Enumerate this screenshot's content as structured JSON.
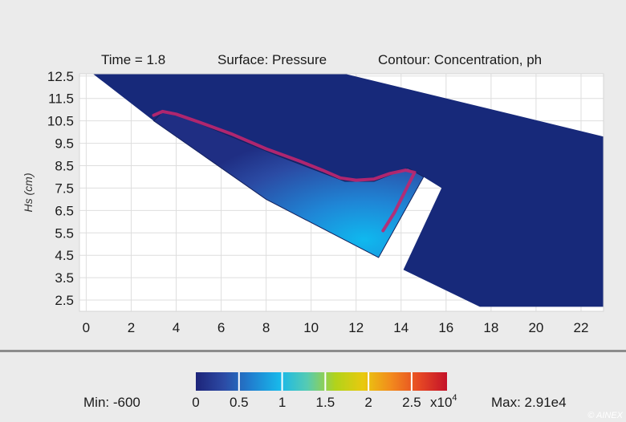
{
  "chart_data": {
    "type": "heatmap",
    "header": {
      "time": "Time = 1.8",
      "surface": "Surface: Pressure",
      "contour": "Contour: Concentration, ph"
    },
    "ylabel": "Hs (cm)",
    "xlabel": "",
    "xlim": [
      -0.3,
      23
    ],
    "ylim": [
      2.0,
      12.6
    ],
    "x_ticks": [
      "0",
      "2",
      "4",
      "6",
      "8",
      "10",
      "12",
      "14",
      "16",
      "18",
      "20",
      "22"
    ],
    "y_ticks": [
      "12.5",
      "11.5",
      "10.5",
      "9.5",
      "8.5",
      "7.5",
      "6.5",
      "5.5",
      "4.5",
      "3.5",
      "2.5"
    ],
    "grid": true,
    "domain_color": "#17297a",
    "contour_color": "#c0266e",
    "regions": {
      "main_body": [
        [
          0.3,
          12.6
        ],
        [
          11.5,
          12.6
        ],
        [
          23,
          9.8
        ],
        [
          23,
          2.2
        ],
        [
          17.5,
          2.2
        ],
        [
          14.1,
          3.85
        ],
        [
          15.8,
          7.5
        ],
        [
          15.0,
          8.0
        ],
        [
          13.0,
          4.4
        ],
        [
          8,
          7.0
        ],
        [
          3.0,
          10.5
        ]
      ],
      "wedge": [
        [
          3.0,
          10.5
        ],
        [
          3.4,
          10.9
        ],
        [
          4.5,
          10.6
        ],
        [
          8.5,
          8.95
        ],
        [
          11.5,
          7.8
        ],
        [
          12.8,
          7.8
        ],
        [
          14.3,
          8.4
        ],
        [
          15.0,
          8.0
        ],
        [
          13.0,
          4.4
        ],
        [
          8,
          7.0
        ]
      ]
    },
    "contour_line": [
      [
        3.0,
        10.75
      ],
      [
        3.4,
        10.92
      ],
      [
        4.0,
        10.8
      ],
      [
        5.0,
        10.45
      ],
      [
        6.5,
        9.9
      ],
      [
        8.0,
        9.25
      ],
      [
        9.5,
        8.7
      ],
      [
        10.5,
        8.3
      ],
      [
        11.3,
        7.95
      ],
      [
        12.0,
        7.85
      ],
      [
        12.8,
        7.9
      ],
      [
        13.5,
        8.15
      ],
      [
        14.2,
        8.3
      ],
      [
        14.6,
        8.2
      ],
      [
        14.3,
        7.6
      ],
      [
        13.7,
        6.4
      ],
      [
        13.2,
        5.6
      ]
    ],
    "colorbar": {
      "ticks": [
        "0",
        "0.5",
        "1",
        "1.5",
        "2",
        "2.5"
      ],
      "multiplier": "x10",
      "exponent": "4",
      "min_label": "Min: -600",
      "max_label": "Max: 2.91e4",
      "colors": [
        "#1d2479",
        "#2c4aa4",
        "#2080d0",
        "#18b8ea",
        "#56cbb2",
        "#b2d31a",
        "#e9c90f",
        "#f28a1d",
        "#e64824",
        "#c41229"
      ]
    }
  },
  "watermark": "© AINEX"
}
